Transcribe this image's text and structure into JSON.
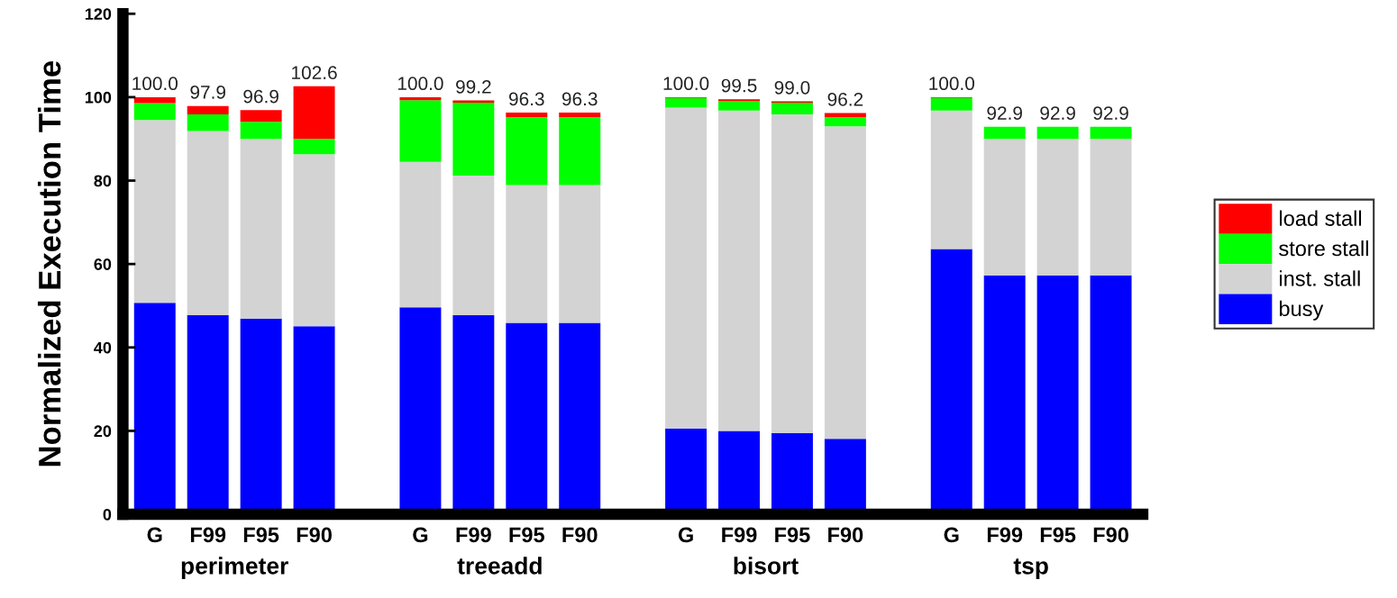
{
  "chart_data": {
    "type": "bar",
    "stacked": true,
    "ylabel": "Normalized Execution Time",
    "categories": [
      "G",
      "F99",
      "F95",
      "F90",
      null,
      "G",
      "F99",
      "F95",
      "F90",
      null,
      "G",
      "F99",
      "F95",
      "F90",
      null,
      "G",
      "F99",
      "F95",
      "F90"
    ],
    "annotations": [
      "perimeter",
      "treeadd",
      "bisort",
      "tsp"
    ],
    "series": [
      {
        "name": "busy",
        "color": "#0000ff",
        "values": [
          50.7,
          47.7,
          46.9,
          45.1,
          null,
          49.6,
          47.7,
          45.9,
          45.9,
          null,
          20.6,
          20.0,
          19.5,
          18.1,
          null,
          63.6,
          57.3,
          57.3,
          57.3
        ]
      },
      {
        "name": "inst. stall",
        "color": "#d3d3d3",
        "values": [
          43.8,
          44.2,
          43.1,
          41.2,
          null,
          34.9,
          33.5,
          33.0,
          33.0,
          null,
          76.9,
          76.8,
          76.4,
          74.9,
          null,
          33.2,
          32.7,
          32.7,
          32.7
        ]
      },
      {
        "name": "store stall",
        "color": "#00ff00",
        "values": [
          4.1,
          4.0,
          4.1,
          3.7,
          null,
          14.8,
          17.5,
          16.3,
          16.3,
          null,
          2.3,
          2.3,
          2.8,
          2.2,
          null,
          3.0,
          2.9,
          2.9,
          2.9
        ]
      },
      {
        "name": "load stall",
        "color": "#ff0000",
        "values": [
          1.4,
          2.0,
          2.8,
          12.6,
          null,
          0.7,
          0.5,
          1.1,
          1.1,
          null,
          0.2,
          0.4,
          0.3,
          1.0,
          null,
          0.2,
          0.0,
          0.0,
          0.0
        ]
      }
    ],
    "totals": [
      "100.0",
      "97.9",
      "96.9",
      "102.6",
      null,
      "100.0",
      "99.2",
      "96.3",
      "96.3",
      null,
      "100.0",
      "99.5",
      "99.0",
      "96.2",
      null,
      "100.0",
      "92.9",
      "92.9",
      "92.9"
    ],
    "ylim": [
      0,
      120
    ],
    "yticks": [
      0,
      20,
      40,
      60,
      80,
      100,
      120
    ],
    "grid": false,
    "legend": "right"
  }
}
